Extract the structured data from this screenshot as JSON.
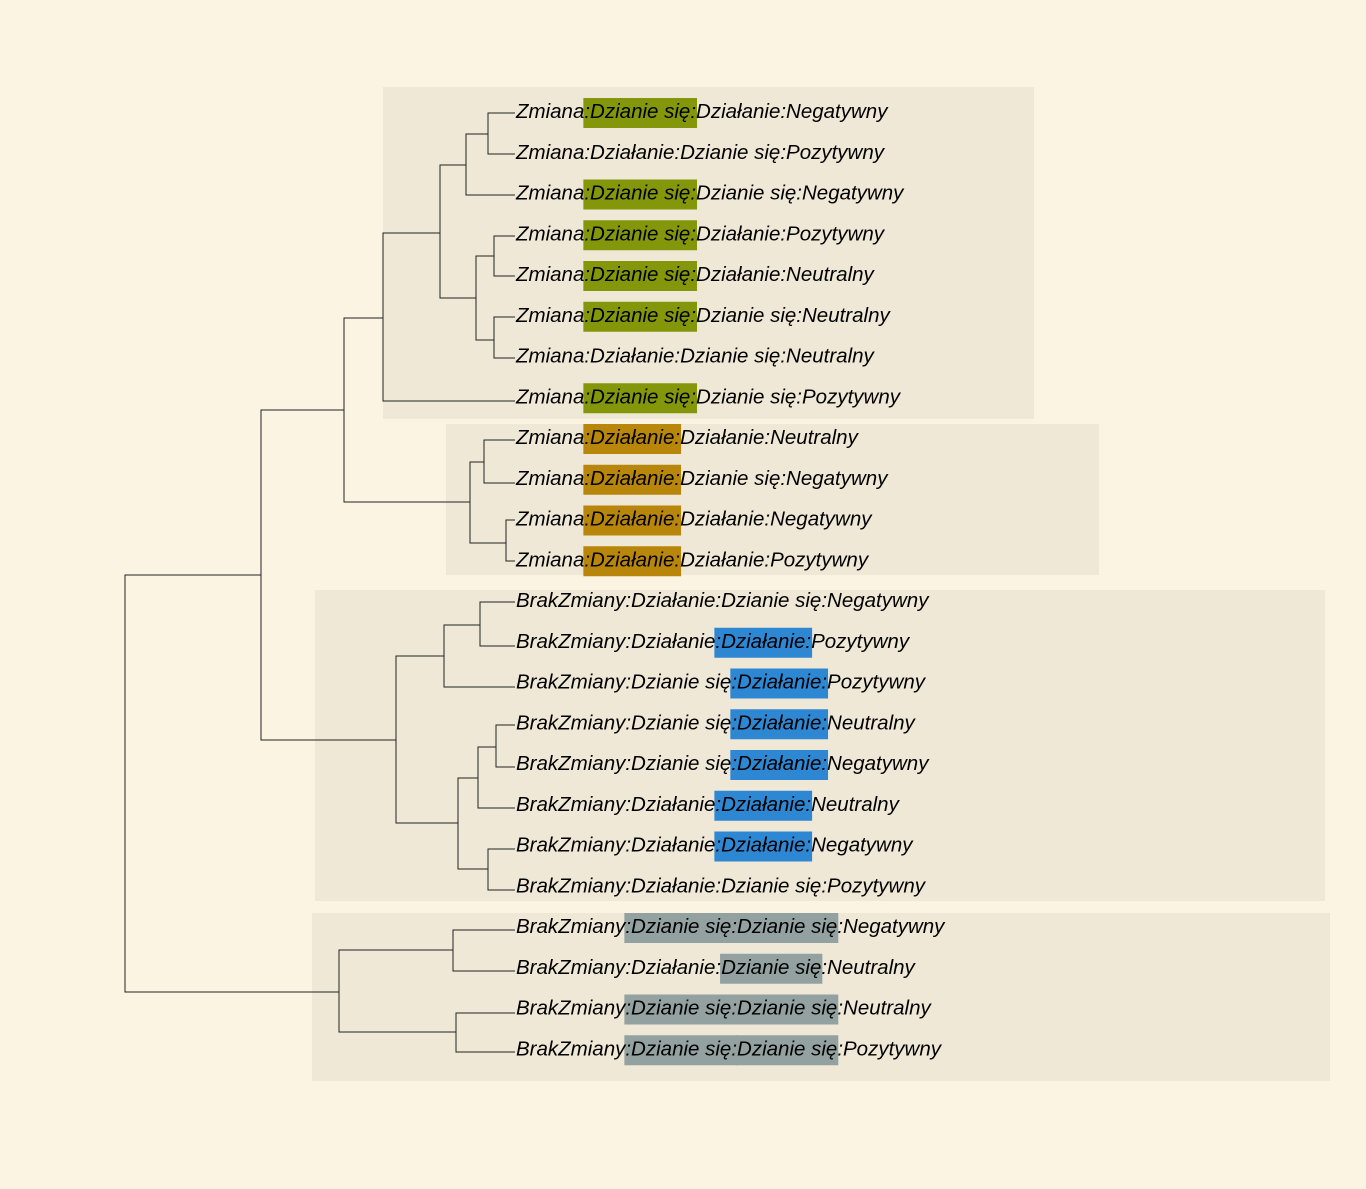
{
  "colors": {
    "background": "#fcf4e3",
    "cluster_box": "#efe8d7",
    "branch": "#222222",
    "highlight_green": "#84970a",
    "highlight_gold": "#b8860b",
    "highlight_blue": "#2e87d3",
    "highlight_gray": "#93a1a1"
  },
  "clusters": [
    {
      "color_key": "highlight_green",
      "leaves": [
        {
          "segments": [
            "Zmiana",
            ":Dzianie się:",
            "Działanie:Negatywny"
          ]
        },
        {
          "segments": [
            "Zmiana:Działanie:Dzianie się:Pozytywny"
          ]
        },
        {
          "segments": [
            "Zmiana",
            ":Dzianie się:",
            "Dzianie się:Negatywny"
          ]
        },
        {
          "segments": [
            "Zmiana",
            ":Dzianie się:",
            "Działanie:Pozytywny"
          ]
        },
        {
          "segments": [
            "Zmiana",
            ":Dzianie się:",
            "Działanie:Neutralny"
          ]
        },
        {
          "segments": [
            "Zmiana",
            ":Dzianie się:",
            "Dzianie się:Neutralny"
          ]
        },
        {
          "segments": [
            "Zmiana:Działanie:Dzianie się:Neutralny"
          ]
        },
        {
          "segments": [
            "Zmiana",
            ":Dzianie się:",
            "Dzianie się:Pozytywny"
          ]
        }
      ]
    },
    {
      "color_key": "highlight_gold",
      "leaves": [
        {
          "segments": [
            "Zmiana",
            ":Działanie:",
            "Działanie:Neutralny"
          ]
        },
        {
          "segments": [
            "Zmiana",
            ":Działanie:",
            "Dzianie się:Negatywny"
          ]
        },
        {
          "segments": [
            "Zmiana",
            ":Działanie:",
            "Działanie:Negatywny"
          ]
        },
        {
          "segments": [
            "Zmiana",
            ":Działanie:",
            "Działanie:Pozytywny"
          ]
        }
      ]
    },
    {
      "color_key": "highlight_blue",
      "leaves": [
        {
          "segments": [
            "BrakZmiany:Działanie:Dzianie się:Negatywny"
          ]
        },
        {
          "segments": [
            "BrakZmiany:Działanie",
            ":Działanie:",
            "Pozytywny"
          ]
        },
        {
          "segments": [
            "BrakZmiany:Dzianie się",
            ":Działanie:",
            "Pozytywny"
          ]
        },
        {
          "segments": [
            "BrakZmiany:Dzianie się",
            ":Działanie:",
            "Neutralny"
          ]
        },
        {
          "segments": [
            "BrakZmiany:Dzianie się",
            ":Działanie:",
            "Negatywny"
          ]
        },
        {
          "segments": [
            "BrakZmiany:Działanie",
            ":Działanie:",
            "Neutralny"
          ]
        },
        {
          "segments": [
            "BrakZmiany:Działanie",
            ":Działanie:",
            "Negatywny"
          ]
        },
        {
          "segments": [
            "BrakZmiany:Działanie:Dzianie się:Pozytywny"
          ]
        }
      ]
    },
    {
      "color_key": "highlight_gray",
      "leaves": [
        {
          "segments": [
            "BrakZmiany",
            ":Dzianie się:",
            "Dzianie się",
            ":Negatywny"
          ],
          "highlight": [
            1,
            2
          ]
        },
        {
          "segments": [
            "BrakZmiany:Działanie:",
            "Dzianie się",
            ":Neutralny"
          ],
          "highlight": [
            1
          ]
        },
        {
          "segments": [
            "BrakZmiany",
            ":Dzianie się:",
            "Dzianie się",
            ":Neutralny"
          ],
          "highlight": [
            1,
            2
          ]
        },
        {
          "segments": [
            "BrakZmiany",
            ":Dzianie się:",
            "Dzianie się",
            ":Pozytywny"
          ],
          "highlight": [
            1,
            2
          ]
        }
      ]
    }
  ]
}
